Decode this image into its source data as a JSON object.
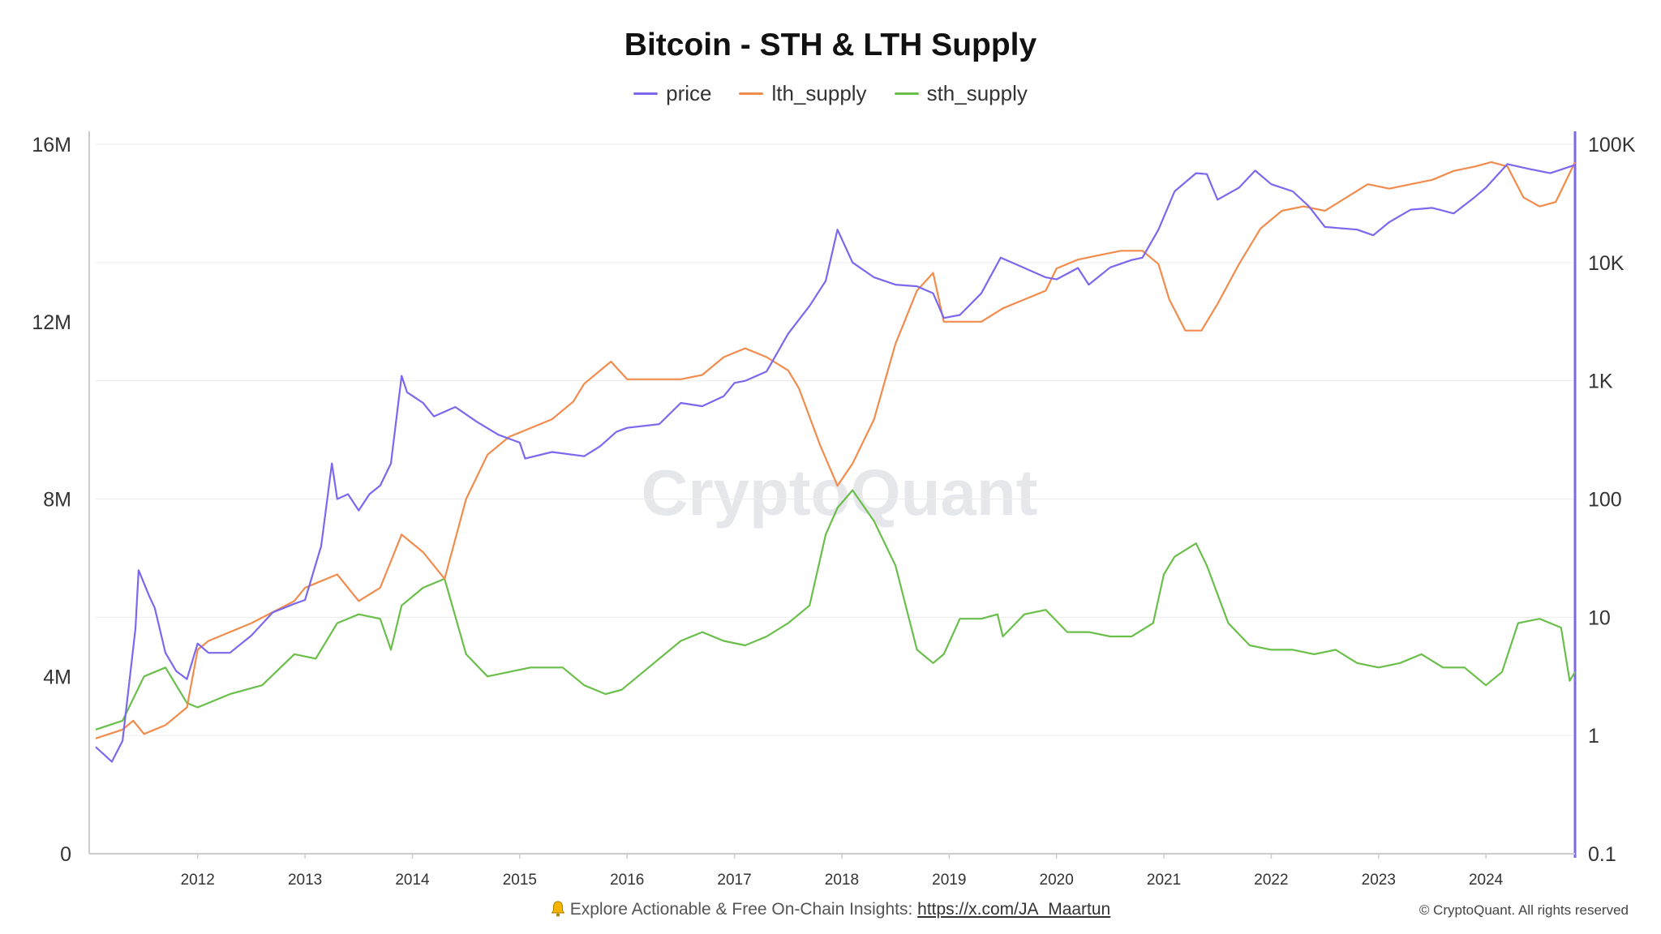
{
  "chart_data": {
    "type": "line",
    "title": "Bitcoin - STH & LTH Supply",
    "legend_position": "top-center",
    "grid": true,
    "watermark": "CryptoQuant",
    "x_ticks": [
      "2012",
      "2013",
      "2014",
      "2015",
      "2016",
      "2017",
      "2018",
      "2019",
      "2020",
      "2021",
      "2022",
      "2023",
      "2024"
    ],
    "xlim": [
      2011.05,
      2024.83
    ],
    "y_left": {
      "scale": "linear",
      "ylim": [
        0,
        16000000
      ],
      "ticks": [
        0,
        4000000,
        8000000,
        12000000,
        16000000
      ],
      "tick_labels": [
        "0",
        "4M",
        "8M",
        "12M",
        "16M"
      ]
    },
    "y_right": {
      "scale": "log",
      "ylim": [
        0.1,
        100000
      ],
      "ticks": [
        0.1,
        1,
        10,
        100,
        1000,
        10000,
        100000
      ],
      "tick_labels": [
        "0.1",
        "1",
        "10",
        "100",
        "1K",
        "10K",
        "100K"
      ],
      "color": "#7b68ee"
    },
    "series": [
      {
        "name": "price",
        "axis": "right",
        "color": "#7b68ee",
        "x": [
          2011.05,
          2011.2,
          2011.3,
          2011.42,
          2011.45,
          2011.55,
          2011.6,
          2011.7,
          2011.8,
          2011.9,
          2012.0,
          2012.1,
          2012.3,
          2012.5,
          2012.7,
          2012.9,
          2013.0,
          2013.15,
          2013.25,
          2013.3,
          2013.4,
          2013.5,
          2013.6,
          2013.7,
          2013.8,
          2013.9,
          2013.95,
          2014.1,
          2014.2,
          2014.4,
          2014.6,
          2014.8,
          2015.0,
          2015.05,
          2015.3,
          2015.6,
          2015.75,
          2015.9,
          2016.0,
          2016.3,
          2016.5,
          2016.7,
          2016.9,
          2017.0,
          2017.1,
          2017.3,
          2017.5,
          2017.7,
          2017.85,
          2017.96,
          2018.1,
          2018.3,
          2018.5,
          2018.7,
          2018.85,
          2018.95,
          2019.1,
          2019.3,
          2019.48,
          2019.7,
          2019.9,
          2020.0,
          2020.2,
          2020.3,
          2020.5,
          2020.7,
          2020.8,
          2020.95,
          2021.1,
          2021.3,
          2021.4,
          2021.5,
          2021.7,
          2021.85,
          2022.0,
          2022.2,
          2022.35,
          2022.5,
          2022.8,
          2022.95,
          2023.1,
          2023.3,
          2023.5,
          2023.7,
          2023.9,
          2024.0,
          2024.2,
          2024.4,
          2024.6,
          2024.83
        ],
        "y": [
          0.8,
          0.6,
          0.9,
          8,
          25,
          15,
          12,
          5,
          3.5,
          3,
          6,
          5,
          5,
          7,
          11,
          13,
          14,
          40,
          200,
          100,
          110,
          80,
          110,
          130,
          200,
          1100,
          800,
          650,
          500,
          600,
          450,
          350,
          300,
          220,
          250,
          230,
          280,
          370,
          400,
          430,
          650,
          610,
          740,
          960,
          1000,
          1200,
          2500,
          4300,
          7000,
          19000,
          10000,
          7500,
          6500,
          6300,
          5500,
          3400,
          3600,
          5500,
          11000,
          9000,
          7500,
          7200,
          9000,
          6500,
          9100,
          10500,
          11000,
          19000,
          40000,
          57000,
          56000,
          34000,
          43000,
          60000,
          46000,
          40000,
          30000,
          20000,
          19000,
          17000,
          22000,
          28000,
          29000,
          26000,
          36000,
          43000,
          68000,
          62000,
          57000,
          67000
        ]
      },
      {
        "name": "lth_supply",
        "axis": "left",
        "color": "#f28c4d",
        "x": [
          2011.05,
          2011.3,
          2011.4,
          2011.5,
          2011.7,
          2011.9,
          2012.0,
          2012.1,
          2012.5,
          2012.9,
          2013.0,
          2013.3,
          2013.5,
          2013.7,
          2013.8,
          2013.9,
          2014.1,
          2014.3,
          2014.5,
          2014.7,
          2014.9,
          2015.0,
          2015.1,
          2015.3,
          2015.5,
          2015.6,
          2015.8,
          2015.85,
          2016.0,
          2016.3,
          2016.5,
          2016.7,
          2016.9,
          2017.0,
          2017.1,
          2017.3,
          2017.5,
          2017.6,
          2017.8,
          2017.96,
          2018.1,
          2018.3,
          2018.5,
          2018.7,
          2018.85,
          2018.95,
          2019.1,
          2019.3,
          2019.5,
          2019.7,
          2019.9,
          2020.0,
          2020.2,
          2020.4,
          2020.6,
          2020.8,
          2020.95,
          2021.05,
          2021.2,
          2021.35,
          2021.5,
          2021.7,
          2021.9,
          2022.1,
          2022.3,
          2022.5,
          2022.7,
          2022.9,
          2023.1,
          2023.3,
          2023.5,
          2023.7,
          2023.9,
          2024.05,
          2024.2,
          2024.35,
          2024.5,
          2024.65,
          2024.83
        ],
        "y": [
          2600000,
          2800000,
          3000000,
          2700000,
          2900000,
          3300000,
          4600000,
          4800000,
          5200000,
          5700000,
          6000000,
          6300000,
          5700000,
          6000000,
          6600000,
          7200000,
          6800000,
          6200000,
          8000000,
          9000000,
          9400000,
          9500000,
          9600000,
          9800000,
          10200000,
          10600000,
          11000000,
          11100000,
          10700000,
          10700000,
          10700000,
          10800000,
          11200000,
          11300000,
          11400000,
          11200000,
          10900000,
          10500000,
          9200000,
          8300000,
          8800000,
          9800000,
          11500000,
          12700000,
          13100000,
          12000000,
          12000000,
          12000000,
          12300000,
          12500000,
          12700000,
          13200000,
          13400000,
          13500000,
          13600000,
          13600000,
          13300000,
          12500000,
          11800000,
          11800000,
          12400000,
          13300000,
          14100000,
          14500000,
          14600000,
          14500000,
          14800000,
          15100000,
          15000000,
          15100000,
          15200000,
          15400000,
          15500000,
          15600000,
          15500000,
          14800000,
          14600000,
          14700000,
          15600000
        ]
      },
      {
        "name": "sth_supply",
        "axis": "left",
        "color": "#6abf4b",
        "x": [
          2011.05,
          2011.3,
          2011.5,
          2011.7,
          2011.9,
          2012.0,
          2012.3,
          2012.6,
          2012.9,
          2013.1,
          2013.3,
          2013.5,
          2013.7,
          2013.8,
          2013.9,
          2014.1,
          2014.3,
          2014.5,
          2014.7,
          2014.9,
          2015.1,
          2015.4,
          2015.6,
          2015.8,
          2015.95,
          2016.2,
          2016.5,
          2016.7,
          2016.9,
          2017.1,
          2017.3,
          2017.5,
          2017.7,
          2017.85,
          2017.96,
          2018.1,
          2018.3,
          2018.5,
          2018.7,
          2018.85,
          2018.95,
          2019.1,
          2019.3,
          2019.45,
          2019.5,
          2019.7,
          2019.9,
          2020.1,
          2020.3,
          2020.5,
          2020.7,
          2020.9,
          2021.0,
          2021.1,
          2021.3,
          2021.4,
          2021.6,
          2021.8,
          2022.0,
          2022.2,
          2022.4,
          2022.6,
          2022.8,
          2023.0,
          2023.2,
          2023.4,
          2023.6,
          2023.8,
          2024.0,
          2024.15,
          2024.3,
          2024.5,
          2024.7,
          2024.78,
          2024.83
        ],
        "y": [
          2800000,
          3000000,
          4000000,
          4200000,
          3400000,
          3300000,
          3600000,
          3800000,
          4500000,
          4400000,
          5200000,
          5400000,
          5300000,
          4600000,
          5600000,
          6000000,
          6200000,
          4500000,
          4000000,
          4100000,
          4200000,
          4200000,
          3800000,
          3600000,
          3700000,
          4200000,
          4800000,
          5000000,
          4800000,
          4700000,
          4900000,
          5200000,
          5600000,
          7200000,
          7800000,
          8200000,
          7500000,
          6500000,
          4600000,
          4300000,
          4500000,
          5300000,
          5300000,
          5400000,
          4900000,
          5400000,
          5500000,
          5000000,
          5000000,
          4900000,
          4900000,
          5200000,
          6300000,
          6700000,
          7000000,
          6500000,
          5200000,
          4700000,
          4600000,
          4600000,
          4500000,
          4600000,
          4300000,
          4200000,
          4300000,
          4500000,
          4200000,
          4200000,
          3800000,
          4100000,
          5200000,
          5300000,
          5100000,
          3900000,
          4100000
        ]
      }
    ]
  },
  "footer": {
    "text": "Explore Actionable & Free On-Chain Insights: ",
    "link": "https://x.com/JA_Maartun",
    "copyright": "© CryptoQuant. All rights reserved",
    "bell_icon": "bell-icon"
  }
}
